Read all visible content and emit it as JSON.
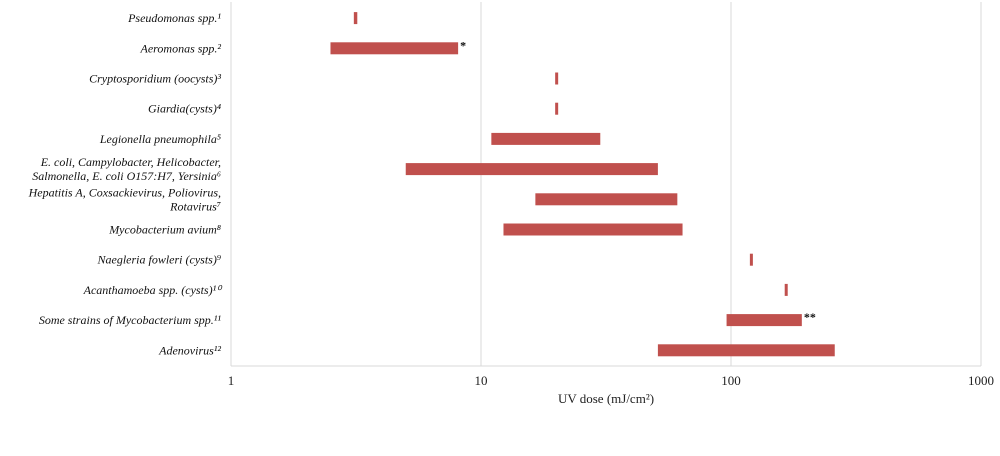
{
  "chart_data": {
    "type": "bar",
    "orientation": "horizontal-range",
    "xscale": "log",
    "xlim": [
      1,
      1000
    ],
    "xticks": [
      "1",
      "10",
      "100",
      "1000"
    ],
    "xlabel": "UV dose (mJ/cm²)",
    "grid": true,
    "bar_color": "#c0504d",
    "categories": [
      {
        "lines": [
          "Pseudomonas spp.¹"
        ],
        "range": [
          3.1,
          3.2
        ],
        "note": ""
      },
      {
        "lines": [
          "Aeromonas spp.²"
        ],
        "range": [
          2.5,
          8.1
        ],
        "note": "*"
      },
      {
        "lines": [
          "Cryptosporidium (oocysts)³"
        ],
        "range": [
          19.8,
          20.3
        ],
        "note": ""
      },
      {
        "lines": [
          "Giardia(cysts)⁴"
        ],
        "range": [
          19.8,
          20.3
        ],
        "note": ""
      },
      {
        "lines": [
          "Legionella pneumophila⁵"
        ],
        "range": [
          11,
          30
        ],
        "note": ""
      },
      {
        "lines": [
          "E. coli, Campylobacter, Helicobacter,",
          "Salmonella, E. coli O157:H7, Yersinia⁶"
        ],
        "range": [
          5,
          51
        ],
        "note": ""
      },
      {
        "lines": [
          "Hepatitis A, Coxsackievirus, Poliovirus,",
          "Rotavirus⁷"
        ],
        "range": [
          16.5,
          61
        ],
        "note": ""
      },
      {
        "lines": [
          "Mycobacterium avium⁸"
        ],
        "range": [
          12.3,
          64
        ],
        "note": ""
      },
      {
        "lines": [
          "Naegleria fowleri (cysts)⁹"
        ],
        "range": [
          119,
          122
        ],
        "note": ""
      },
      {
        "lines": [
          "Acanthamoeba spp. (cysts)¹⁰"
        ],
        "range": [
          164,
          167
        ],
        "note": ""
      },
      {
        "lines": [
          "Some strains of Mycobacterium spp.¹¹"
        ],
        "range": [
          96,
          192
        ],
        "note": "**"
      },
      {
        "lines": [
          "Adenovirus¹²"
        ],
        "range": [
          51,
          260
        ],
        "note": ""
      }
    ]
  }
}
